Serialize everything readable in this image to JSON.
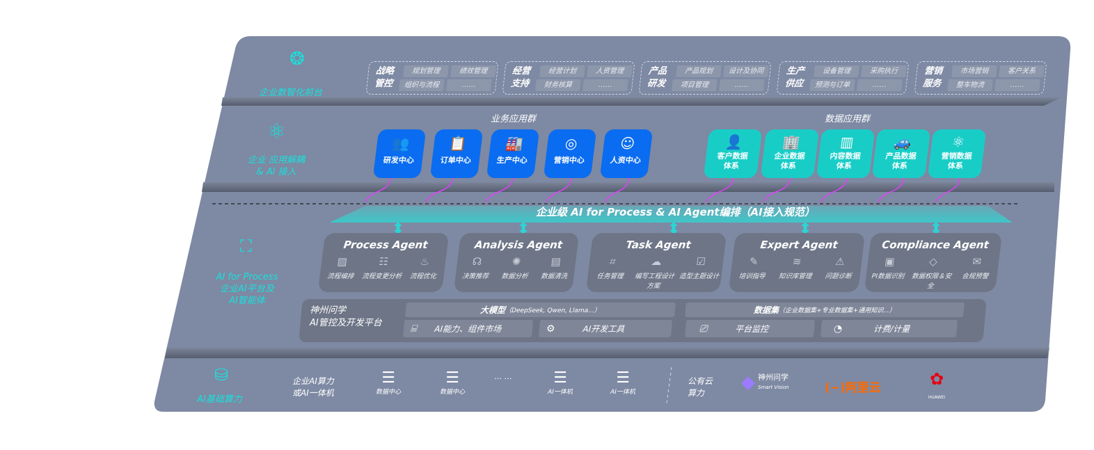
{
  "front": {
    "label": "企业数智化前台",
    "icon": "brain-icon",
    "groups": [
      {
        "title": [
          "战略",
          "管控"
        ],
        "items": [
          "规划管理",
          "绩效管理",
          "组织与流程",
          "……"
        ]
      },
      {
        "title": [
          "经营",
          "支持"
        ],
        "items": [
          "经营计划",
          "人资管理",
          "财务核算",
          "……"
        ]
      },
      {
        "title": [
          "产品",
          "研发"
        ],
        "items": [
          "产品规划",
          "设计及协同",
          "项目管理",
          "……"
        ]
      },
      {
        "title": [
          "生产",
          "供应"
        ],
        "items": [
          "设备管理",
          "采购执行",
          "预测与订单",
          "……"
        ]
      },
      {
        "title": [
          "营销",
          "服务"
        ],
        "items": [
          "市场营销",
          "客户关系",
          "整车物流",
          "……"
        ]
      }
    ]
  },
  "apps": {
    "label": [
      "企业 应用解耦",
      "& AI 接入"
    ],
    "business": {
      "title": "业务应用群",
      "color": "#0a6cf0",
      "items": [
        {
          "label": "研发中心",
          "icon": "team-icon"
        },
        {
          "label": "订单中心",
          "icon": "clipboard-icon"
        },
        {
          "label": "生产中心",
          "icon": "factory-icon"
        },
        {
          "label": "营销中心",
          "icon": "target-icon"
        },
        {
          "label": "人资中心",
          "icon": "person-icon"
        }
      ]
    },
    "data": {
      "title": "数据应用群",
      "color": "#19cdc7",
      "items": [
        {
          "label": [
            "客户数据",
            "体系"
          ],
          "icon": "user-icon"
        },
        {
          "label": [
            "企业数据",
            "体系"
          ],
          "icon": "building-icon"
        },
        {
          "label": [
            "内容数据",
            "体系"
          ],
          "icon": "books-icon"
        },
        {
          "label": [
            "产品数据",
            "体系"
          ],
          "icon": "car-icon"
        },
        {
          "label": [
            "营销数据",
            "体系"
          ],
          "icon": "atom-icon"
        }
      ]
    }
  },
  "orchestration": {
    "banner": "企业级 AI for Process & AI Agent编排（AI接入规范）"
  },
  "ai": {
    "label": [
      "AI for Process",
      "企业AI平台及",
      "AI智能体"
    ],
    "agents": [
      {
        "name": "Process Agent",
        "items": [
          "流程编排",
          "流程变更分析",
          "流程优化"
        ]
      },
      {
        "name": "Analysis Agent",
        "items": [
          "决策推荐",
          "数据分析",
          "数据清洗"
        ]
      },
      {
        "name": "Task Agent",
        "items": [
          "任务管理",
          "编写工程设计方案",
          "造型主题设计"
        ]
      },
      {
        "name": "Expert Agent",
        "items": [
          "培训指导",
          "知识库管理",
          "问题诊断"
        ]
      },
      {
        "name": "Compliance Agent",
        "items": [
          "PI数据识别",
          "数据权限＆安全",
          "合规预警"
        ]
      }
    ],
    "platform": {
      "title": [
        "神州问学",
        "AI管控及开发平台"
      ],
      "model": "大模型",
      "model_note": "（DeepSeek, Qwen, Llama...）",
      "dataset": "数据集",
      "dataset_note": "（企业数据集+专业数据集+通用知识...）",
      "tools": [
        "AI能力、组件市场",
        "AI开发工具",
        "平台监控",
        "计费/计量"
      ]
    }
  },
  "infra": {
    "label": "AI基础算力",
    "compute": [
      "企业AI算力",
      "或AI一体机"
    ],
    "nodes": [
      "数据中心",
      "数据中心",
      "AI一体机",
      "AI一体机"
    ],
    "ellipsis": "… …",
    "cloud": [
      "公有云",
      "算力"
    ],
    "vendors": [
      {
        "name": "神州问学",
        "sub": "Smart Vision"
      },
      {
        "name": "阿里云",
        "color": "#ff6a00"
      },
      {
        "name": "HUAWEI",
        "color": "#e60012"
      }
    ]
  }
}
